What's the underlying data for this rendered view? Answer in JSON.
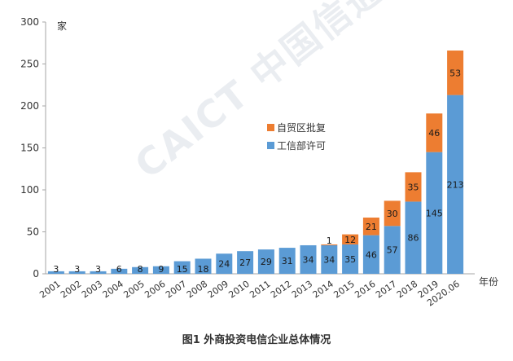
{
  "chart_data": {
    "type": "bar",
    "stacked": true,
    "y_unit": "家",
    "x_unit": "年份",
    "ylim": [
      0,
      300
    ],
    "yticks": [
      0,
      50,
      100,
      150,
      200,
      250,
      300
    ],
    "categories": [
      "2001",
      "2002",
      "2003",
      "2004",
      "2005",
      "2006",
      "2007",
      "2008",
      "2009",
      "2010",
      "2011",
      "2012",
      "2013",
      "2014",
      "2015",
      "2016",
      "2017",
      "2018",
      "2019",
      "2020.06"
    ],
    "series": [
      {
        "name": "工信部许可",
        "color": "#5b9bd5",
        "values": [
          3,
          3,
          3,
          6,
          8,
          9,
          15,
          18,
          24,
          27,
          29,
          31,
          34,
          34,
          35,
          46,
          57,
          86,
          145,
          213
        ]
      },
      {
        "name": "自贸区批复",
        "color": "#ed7d31",
        "values": [
          0,
          0,
          0,
          0,
          0,
          0,
          0,
          0,
          0,
          0,
          0,
          0,
          0,
          1,
          12,
          21,
          30,
          35,
          46,
          53
        ]
      }
    ],
    "legend_position": "center-right",
    "grid": false
  },
  "caption": "图1 外商投资电信企业总体情况",
  "watermark": "CAICT 中国信通院"
}
